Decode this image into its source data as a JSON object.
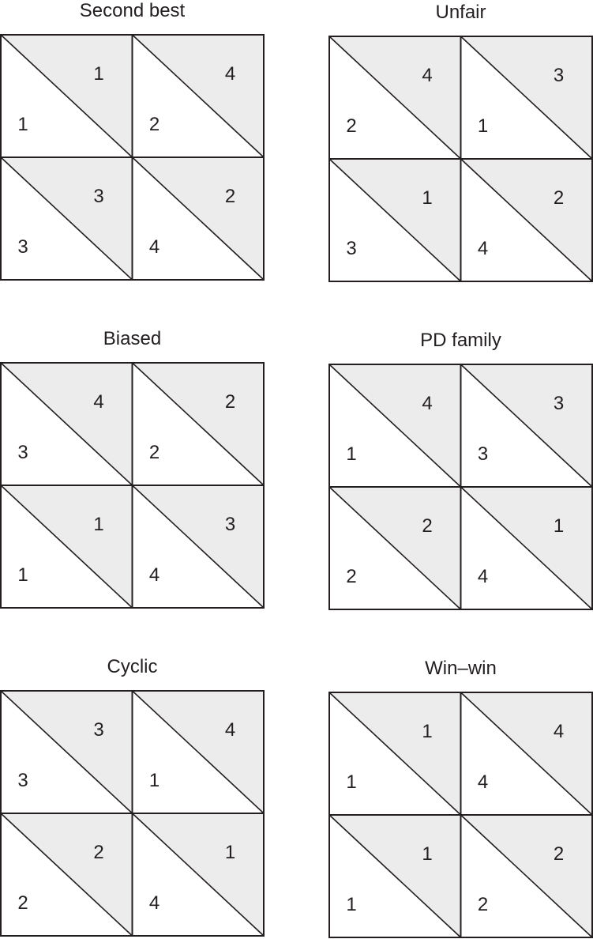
{
  "panels": [
    {
      "title": "Second best",
      "cells": [
        {
          "upper": "1",
          "lower": "1"
        },
        {
          "upper": "4",
          "lower": "2"
        },
        {
          "upper": "3",
          "lower": "3"
        },
        {
          "upper": "2",
          "lower": "4"
        }
      ]
    },
    {
      "title": "Unfair",
      "cells": [
        {
          "upper": "4",
          "lower": "2"
        },
        {
          "upper": "3",
          "lower": "1"
        },
        {
          "upper": "1",
          "lower": "3"
        },
        {
          "upper": "2",
          "lower": "4"
        }
      ]
    },
    {
      "title": "Biased",
      "cells": [
        {
          "upper": "4",
          "lower": "3"
        },
        {
          "upper": "2",
          "lower": "2"
        },
        {
          "upper": "1",
          "lower": "1"
        },
        {
          "upper": "3",
          "lower": "4"
        }
      ]
    },
    {
      "title": "PD family",
      "cells": [
        {
          "upper": "4",
          "lower": "1"
        },
        {
          "upper": "3",
          "lower": "3"
        },
        {
          "upper": "2",
          "lower": "2"
        },
        {
          "upper": "1",
          "lower": "4"
        }
      ]
    },
    {
      "title": "Cyclic",
      "cells": [
        {
          "upper": "3",
          "lower": "3"
        },
        {
          "upper": "4",
          "lower": "1"
        },
        {
          "upper": "2",
          "lower": "2"
        },
        {
          "upper": "1",
          "lower": "4"
        }
      ]
    },
    {
      "title": "Win–win",
      "cells": [
        {
          "upper": "1",
          "lower": "1"
        },
        {
          "upper": "4",
          "lower": "4"
        },
        {
          "upper": "1",
          "lower": "1"
        },
        {
          "upper": "2",
          "lower": "2"
        }
      ]
    }
  ],
  "colors": {
    "upper_fill": "#ececec",
    "lower_fill": "#ffffff",
    "line": "#231f20",
    "text": "#231f20"
  }
}
